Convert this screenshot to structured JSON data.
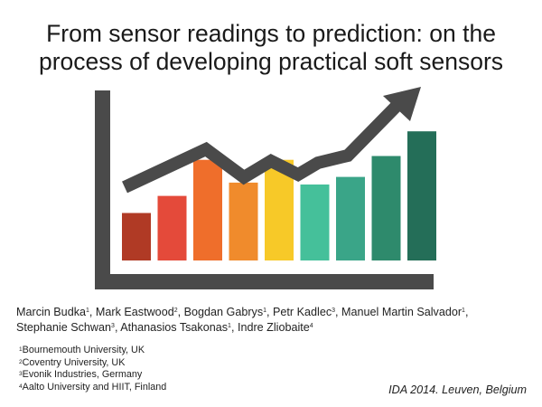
{
  "title": {
    "line1": "From sensor readings to prediction: on the",
    "line2": "process of developing practical soft sensors"
  },
  "graphic": {
    "axis_color": "#4a4a4a",
    "bar_colors": [
      "#b03a25",
      "#e44a3a",
      "#ef6e2b",
      "#f08b2c",
      "#f7c928",
      "#45c09a",
      "#3aa588",
      "#2e8a6c",
      "#246e58"
    ],
    "bar_levels": [
      0.25,
      0.34,
      0.53,
      0.41,
      0.53,
      0.4,
      0.44,
      0.55,
      0.68
    ],
    "arrow_icon": "trend-arrow-icon"
  },
  "authors": [
    {
      "name": "Marcin Budka",
      "sup": "1"
    },
    {
      "name": "Mark Eastwood",
      "sup": "2"
    },
    {
      "name": "Bogdan Gabrys",
      "sup": "1"
    },
    {
      "name": "Petr Kadlec",
      "sup": "3"
    },
    {
      "name": "Manuel Martin Salvador",
      "sup": "1"
    },
    {
      "name": "Stephanie Schwan",
      "sup": "3"
    },
    {
      "name": "Athanasios Tsakonas",
      "sup": "1"
    },
    {
      "name": "Indre Zliobaite",
      "sup": "4"
    }
  ],
  "affiliations": [
    {
      "sup": "1",
      "text": "Bournemouth University, UK"
    },
    {
      "sup": "2",
      "text": "Coventry University, UK"
    },
    {
      "sup": "3",
      "text": "Evonik Industries, Germany"
    },
    {
      "sup": "4",
      "text": "Aalto University and HIIT, Finland"
    }
  ],
  "venue": "IDA 2014. Leuven, Belgium"
}
